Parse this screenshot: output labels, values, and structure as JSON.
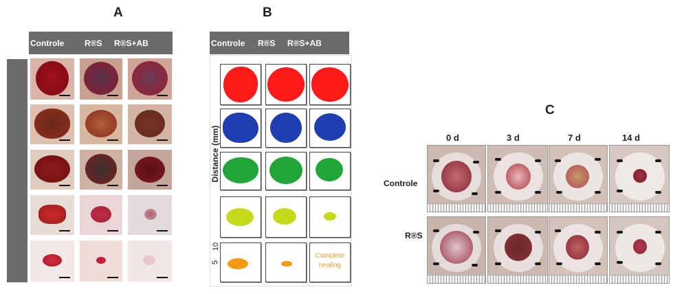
{
  "panel_a": {
    "letter": "A",
    "headers": [
      "Controle",
      "R®S",
      "R®S+AB"
    ]
  },
  "panel_b": {
    "letter": "B",
    "headers": [
      "Controle",
      "R®S",
      "R®S+AB"
    ],
    "y_axis_label": "Distance (mm)",
    "y_ticks": [
      "10",
      "5"
    ],
    "complete_healing_text": "Complete healing",
    "row_colors": [
      "#ff1a1a",
      "#1f3fb0",
      "#22a63a",
      "#c4d91a",
      "#f59a10"
    ]
  },
  "panel_c": {
    "letter": "C",
    "timepoints": [
      "0 d",
      "3 d",
      "7 d",
      "14 d"
    ],
    "row_labels": [
      "Controle",
      "R®S"
    ]
  }
}
